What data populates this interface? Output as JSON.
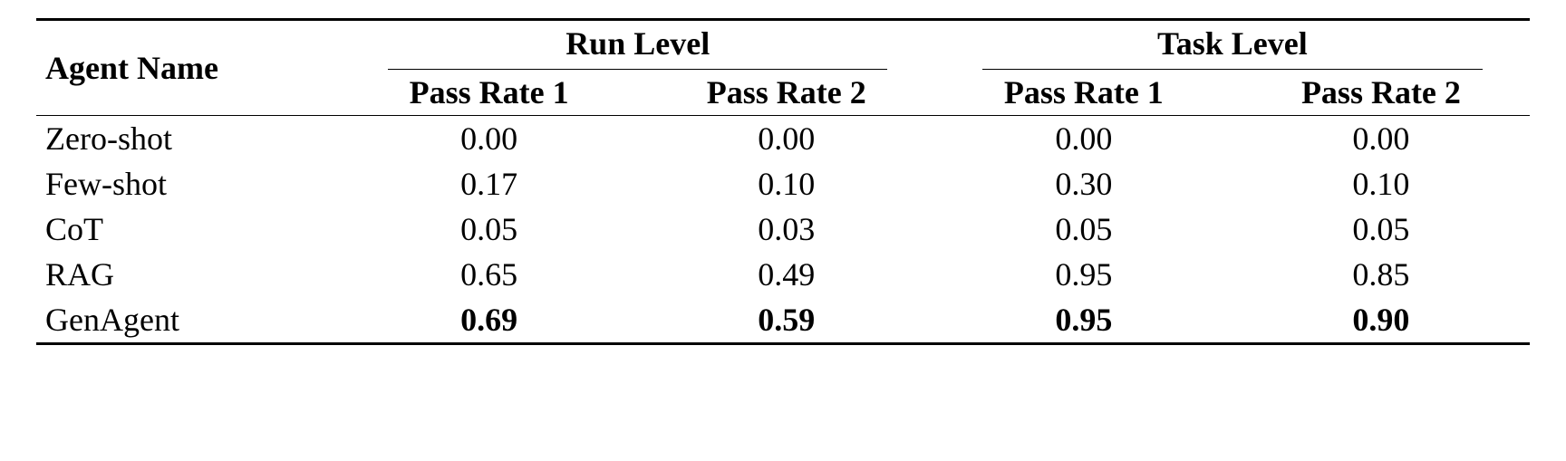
{
  "table": {
    "type": "table",
    "background_color": "#ffffff",
    "text_color": "#000000",
    "rule_color": "#000000",
    "font_family": "Palatino Linotype, Book Antiqua, Palatino, Georgia, serif",
    "header_fontsize": 36,
    "body_fontsize": 36,
    "top_rule_width": 3,
    "mid_rule_width": 1.5,
    "bottom_rule_width": 3,
    "columns": {
      "agent_name": "Agent Name",
      "groups": [
        {
          "label": "Run Level",
          "subcols": [
            "Pass Rate 1",
            "Pass Rate 2"
          ]
        },
        {
          "label": "Task Level",
          "subcols": [
            "Pass Rate 1",
            "Pass Rate 2"
          ]
        }
      ]
    },
    "rows": [
      {
        "agent": "Zero-shot",
        "values": [
          "0.00",
          "0.00",
          "0.00",
          "0.00"
        ],
        "bold": false
      },
      {
        "agent": "Few-shot",
        "values": [
          "0.17",
          "0.10",
          "0.30",
          "0.10"
        ],
        "bold": false
      },
      {
        "agent": "CoT",
        "values": [
          "0.05",
          "0.03",
          "0.05",
          "0.05"
        ],
        "bold": false
      },
      {
        "agent": "RAG",
        "values": [
          "0.65",
          "0.49",
          "0.95",
          "0.85"
        ],
        "bold": false
      },
      {
        "agent": "GenAgent",
        "values": [
          "0.69",
          "0.59",
          "0.95",
          "0.90"
        ],
        "bold": true
      }
    ]
  }
}
